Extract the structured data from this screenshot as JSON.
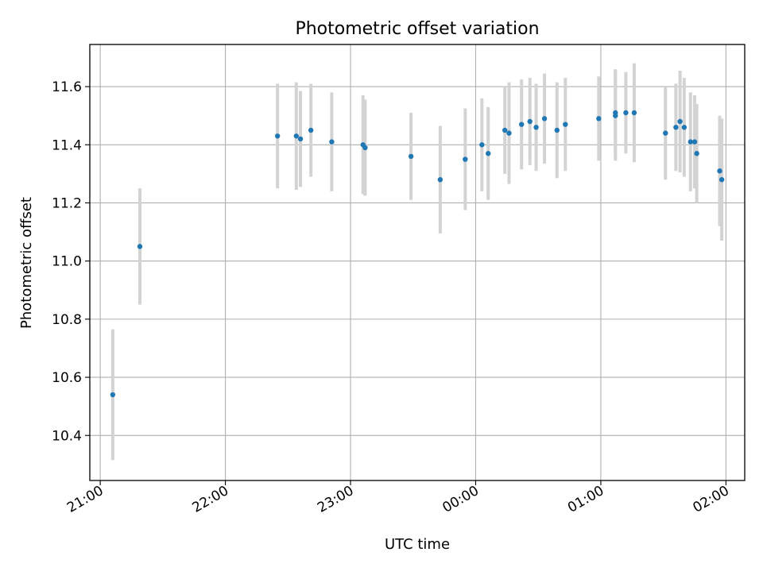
{
  "chart_data": {
    "type": "scatter",
    "title": "Photometric offset variation",
    "xlabel": "UTC time",
    "ylabel": "Photometric offset",
    "grid": true,
    "xlim": [
      "20:55",
      "02:09"
    ],
    "ylim": [
      10.245,
      11.745
    ],
    "x_ticks": [
      "21:00",
      "22:00",
      "23:00",
      "00:00",
      "01:00",
      "02:00"
    ],
    "y_ticks": [
      10.4,
      10.6,
      10.8,
      11.0,
      11.2,
      11.4,
      11.6
    ],
    "point_color": "#1f77b4",
    "errorbar_color": "#d3d3d3",
    "points": [
      {
        "x": "21:06",
        "y": 10.54,
        "err": 0.225
      },
      {
        "x": "21:19",
        "y": 11.05,
        "err": 0.2
      },
      {
        "x": "22:25",
        "y": 11.43,
        "err": 0.18
      },
      {
        "x": "22:34",
        "y": 11.43,
        "err": 0.185
      },
      {
        "x": "22:36",
        "y": 11.42,
        "err": 0.165
      },
      {
        "x": "22:41",
        "y": 11.45,
        "err": 0.16
      },
      {
        "x": "22:51",
        "y": 11.41,
        "err": 0.17
      },
      {
        "x": "23:06",
        "y": 11.4,
        "err": 0.17
      },
      {
        "x": "23:07",
        "y": 11.39,
        "err": 0.165
      },
      {
        "x": "23:29",
        "y": 11.36,
        "err": 0.15
      },
      {
        "x": "23:43",
        "y": 11.28,
        "err": 0.185
      },
      {
        "x": "23:55",
        "y": 11.35,
        "err": 0.175
      },
      {
        "x": "00:03",
        "y": 11.4,
        "err": 0.16
      },
      {
        "x": "00:06",
        "y": 11.37,
        "err": 0.16
      },
      {
        "x": "00:14",
        "y": 11.45,
        "err": 0.15
      },
      {
        "x": "00:16",
        "y": 11.44,
        "err": 0.175
      },
      {
        "x": "00:22",
        "y": 11.47,
        "err": 0.155
      },
      {
        "x": "00:26",
        "y": 11.48,
        "err": 0.15
      },
      {
        "x": "00:29",
        "y": 11.46,
        "err": 0.15
      },
      {
        "x": "00:33",
        "y": 11.49,
        "err": 0.155
      },
      {
        "x": "00:39",
        "y": 11.45,
        "err": 0.165
      },
      {
        "x": "00:43",
        "y": 11.47,
        "err": 0.16
      },
      {
        "x": "00:59",
        "y": 11.49,
        "err": 0.145
      },
      {
        "x": "01:07",
        "y": 11.51,
        "err": 0.15
      },
      {
        "x": "01:07",
        "y": 11.5,
        "err": 0.155
      },
      {
        "x": "01:12",
        "y": 11.51,
        "err": 0.14
      },
      {
        "x": "01:16",
        "y": 11.51,
        "err": 0.17
      },
      {
        "x": "01:31",
        "y": 11.44,
        "err": 0.16
      },
      {
        "x": "01:36",
        "y": 11.46,
        "err": 0.15
      },
      {
        "x": "01:38",
        "y": 11.48,
        "err": 0.175
      },
      {
        "x": "01:40",
        "y": 11.46,
        "err": 0.17
      },
      {
        "x": "01:43",
        "y": 11.41,
        "err": 0.17
      },
      {
        "x": "01:45",
        "y": 11.41,
        "err": 0.16
      },
      {
        "x": "01:46",
        "y": 11.37,
        "err": 0.17
      },
      {
        "x": "01:57",
        "y": 11.31,
        "err": 0.19
      },
      {
        "x": "01:58",
        "y": 11.28,
        "err": 0.21
      }
    ]
  }
}
